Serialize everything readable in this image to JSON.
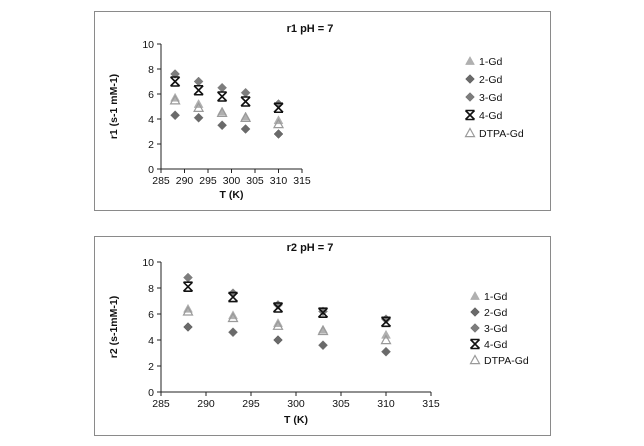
{
  "chart_data": [
    {
      "type": "scatter",
      "title": "r1 pH = 7",
      "xlabel": "T (K)",
      "ylabel": "r1 (s-1 mM-1)",
      "xlim": [
        285,
        315
      ],
      "ylim": [
        0,
        10
      ],
      "xticks": [
        "285",
        "290",
        "295",
        "300",
        "305",
        "310",
        "315"
      ],
      "yticks": [
        "0",
        "2",
        "4",
        "6",
        "8",
        "10"
      ],
      "x": [
        288,
        293,
        298,
        303,
        310
      ],
      "grid": false,
      "legend_position": "right",
      "series": [
        {
          "name": "1-Gd",
          "marker": "filled-triangle",
          "color": "#b0b0b0",
          "values": [
            5.7,
            5.2,
            4.6,
            4.2,
            3.9
          ]
        },
        {
          "name": "2-Gd",
          "marker": "diamond",
          "color": "#6a6a6a",
          "values": [
            4.3,
            4.1,
            3.5,
            3.2,
            2.8
          ]
        },
        {
          "name": "3-Gd",
          "marker": "diamond",
          "color": "#7d7d7d",
          "values": [
            7.6,
            7.0,
            6.5,
            6.1,
            5.2
          ]
        },
        {
          "name": "4-Gd",
          "marker": "asterisk",
          "color": "#111111",
          "values": [
            7.0,
            6.3,
            5.8,
            5.4,
            4.9
          ]
        },
        {
          "name": "DTPA-Gd",
          "marker": "open-triangle",
          "color": "#9a9a9a",
          "values": [
            5.5,
            4.9,
            4.5,
            4.1,
            3.6
          ]
        }
      ]
    },
    {
      "type": "scatter",
      "title": "r2 pH = 7",
      "xlabel": "T (K)",
      "ylabel": "r2 (s-1mM-1)",
      "xlim": [
        285,
        315
      ],
      "ylim": [
        0,
        10
      ],
      "xticks": [
        "285",
        "290",
        "295",
        "300",
        "305",
        "310",
        "315"
      ],
      "yticks": [
        "0",
        "2",
        "4",
        "6",
        "8",
        "10"
      ],
      "x": [
        288,
        293,
        298,
        303,
        310
      ],
      "grid": false,
      "legend_position": "right",
      "series": [
        {
          "name": "1-Gd",
          "marker": "filled-triangle",
          "color": "#b0b0b0",
          "values": [
            6.4,
            5.9,
            5.3,
            4.8,
            4.4
          ]
        },
        {
          "name": "2-Gd",
          "marker": "diamond",
          "color": "#6a6a6a",
          "values": [
            5.0,
            4.6,
            4.0,
            3.6,
            3.1
          ]
        },
        {
          "name": "3-Gd",
          "marker": "diamond",
          "color": "#7d7d7d",
          "values": [
            8.8,
            7.6,
            6.7,
            6.2,
            5.6
          ]
        },
        {
          "name": "4-Gd",
          "marker": "asterisk",
          "color": "#111111",
          "values": [
            8.1,
            7.3,
            6.5,
            6.1,
            5.4
          ]
        },
        {
          "name": "DTPA-Gd",
          "marker": "open-triangle",
          "color": "#9a9a9a",
          "values": [
            6.2,
            5.7,
            5.1,
            4.7,
            4.0
          ]
        }
      ]
    }
  ]
}
